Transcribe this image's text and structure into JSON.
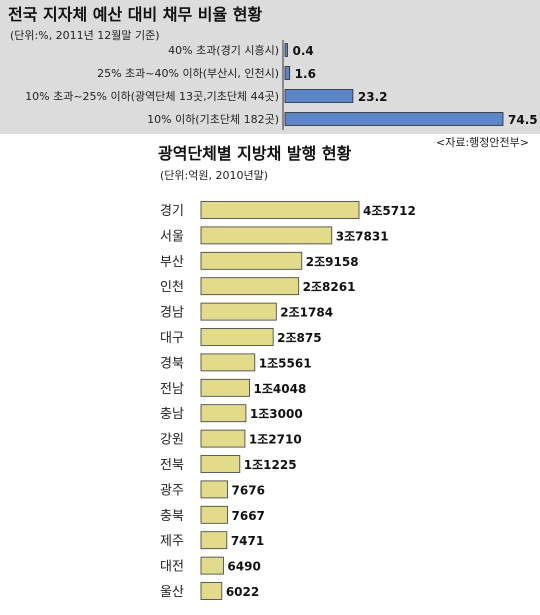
{
  "chart_data": [
    {
      "type": "bar",
      "orientation": "horizontal",
      "title": "전국 지자체 예산 대비 채무 비율 현황",
      "subtitle": "(단위:%, 2011년 12월말 기준)",
      "categories": [
        "40% 초과(경기 시흥시)",
        "25% 초과~40% 이하(부산시, 인천시)",
        "10% 초과~25% 이하(광역단체 13곳,기초단체 44곳)",
        "10% 이하(기초단체 182곳)"
      ],
      "values": [
        0.4,
        1.6,
        23.2,
        74.5
      ],
      "value_labels": [
        "0.4",
        "1.6",
        "23.2",
        "74.5"
      ],
      "xlim": [
        0,
        74.5
      ],
      "bar_color": "#5b86c9",
      "grid": false
    },
    {
      "type": "bar",
      "orientation": "horizontal",
      "title": "광역단체별 지방채 발행 현황",
      "subtitle": "(단위:억원, 2010년말)",
      "source": "<자료:행정안전부>",
      "categories": [
        "경기",
        "서울",
        "부산",
        "인천",
        "경남",
        "대구",
        "경북",
        "전남",
        "충남",
        "강원",
        "전북",
        "광주",
        "충북",
        "제주",
        "대전",
        "울산"
      ],
      "values": [
        45712,
        37831,
        29158,
        28261,
        21784,
        20875,
        15561,
        14048,
        13000,
        12710,
        11225,
        7676,
        7667,
        7471,
        6490,
        6022
      ],
      "value_labels": [
        "4조5712",
        "3조7831",
        "2조9158",
        "2조8261",
        "2조1784",
        "2조875",
        "1조5561",
        "1조4048",
        "1조3000",
        "1조2710",
        "1조1225",
        "7676",
        "7667",
        "7471",
        "6490",
        "6022"
      ],
      "xlim": [
        0,
        45712
      ],
      "bar_color": "#e2dc8a",
      "grid": false
    }
  ]
}
